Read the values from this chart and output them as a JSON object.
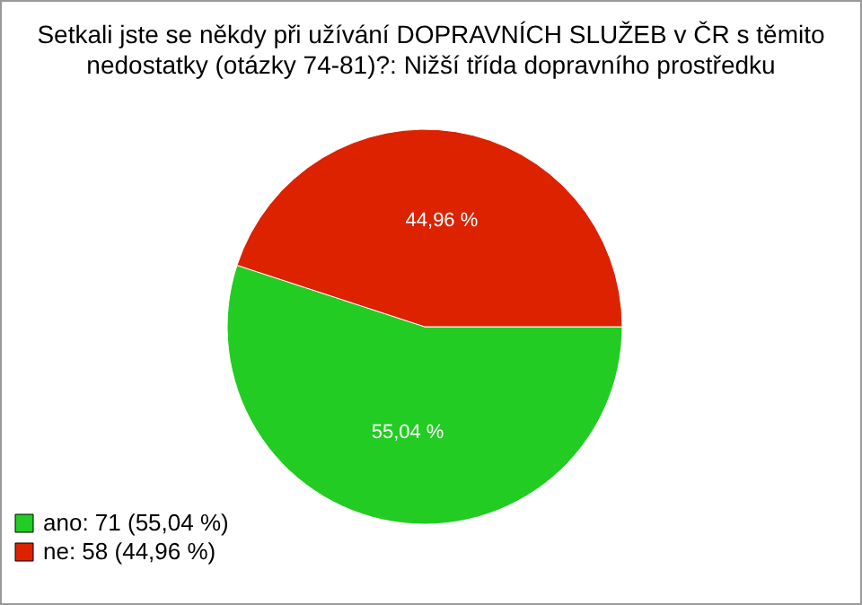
{
  "chart_data": {
    "type": "pie",
    "title": "Setkali jste se někdy při užívání DOPRAVNÍCH SLUŽEB v ČR s těmito nedostatky (otázky 74-81)?: Nižší třída dopravního prostředku",
    "categories": [
      "ano: 71 (55,04 %)",
      "ne: 58 (44,96 %)"
    ],
    "values": [
      55.04,
      44.96
    ],
    "value_labels": [
      "55,04 %",
      "44,96 %"
    ],
    "colors": [
      "#22cc22",
      "#dd2200"
    ],
    "legend": "bottom left"
  }
}
